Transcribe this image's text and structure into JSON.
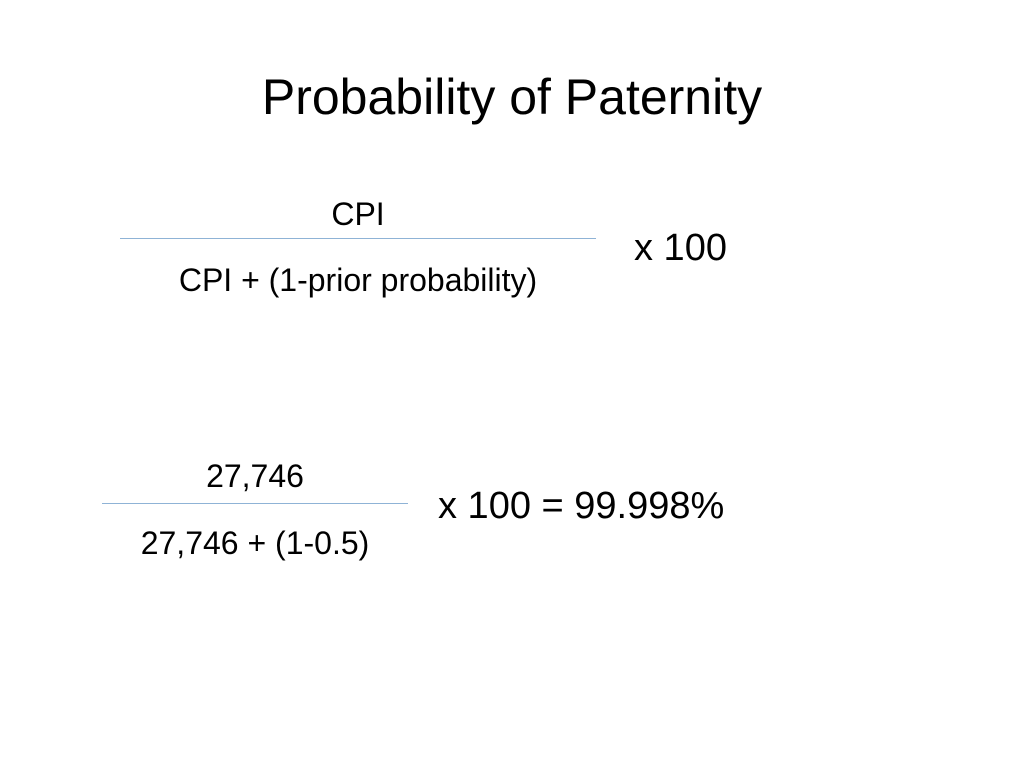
{
  "slide": {
    "title": "Probability of Paternity",
    "formula": {
      "numerator": "CPI",
      "denominator": "CPI + (1-prior probability)",
      "multiplier": "x 100"
    },
    "example": {
      "numerator": "27,746",
      "denominator": "27,746 + (1-0.5)",
      "result": "x 100 = 99.998%"
    }
  }
}
